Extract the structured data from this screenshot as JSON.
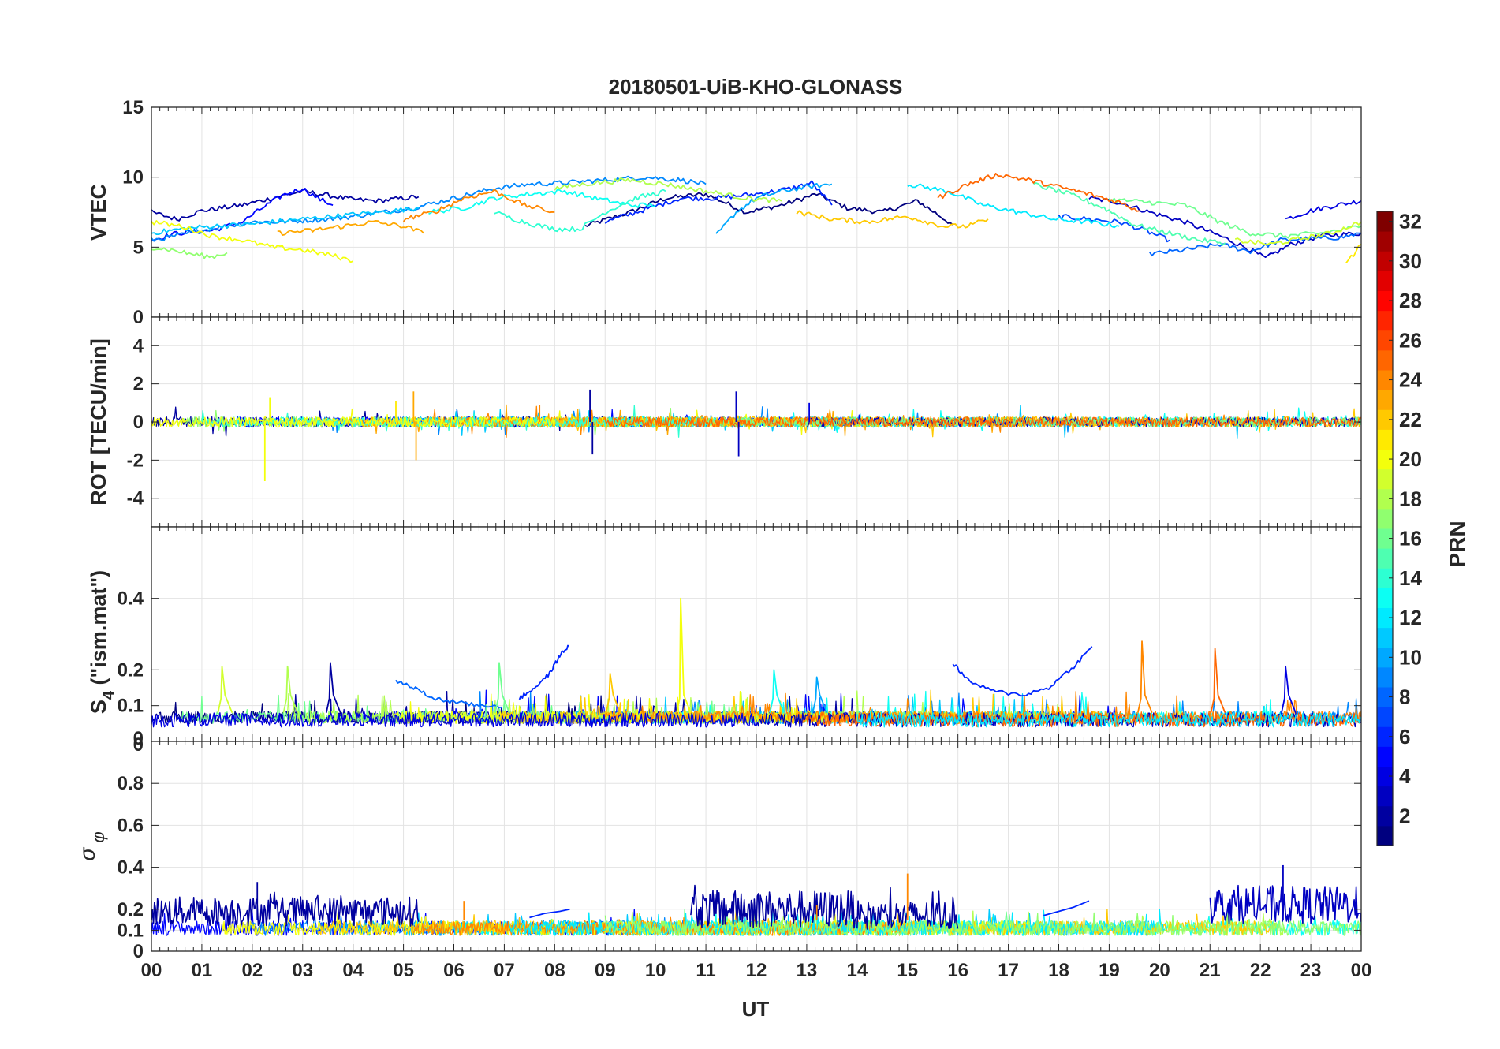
{
  "chart_data": {
    "type": "line",
    "title": "20180501-UiB-KHO-GLONASS",
    "xlabel": "UT",
    "x_ticks": [
      "00",
      "01",
      "02",
      "03",
      "04",
      "05",
      "06",
      "07",
      "08",
      "09",
      "10",
      "11",
      "12",
      "13",
      "14",
      "15",
      "16",
      "17",
      "18",
      "19",
      "20",
      "21",
      "22",
      "23",
      "00"
    ],
    "xlim": [
      0,
      24
    ],
    "colorbar": {
      "label": "PRN",
      "range": [
        1,
        32
      ],
      "ticks": [
        "2",
        "4",
        "6",
        "8",
        "10",
        "12",
        "14",
        "16",
        "18",
        "20",
        "22",
        "24",
        "26",
        "28",
        "30",
        "32"
      ],
      "colormap": [
        "#00007f",
        "#0000ff",
        "#007fff",
        "#00ffff",
        "#7fff7f",
        "#ffff00",
        "#ff7f00",
        "#ff0000",
        "#7f0000"
      ]
    },
    "panels": [
      {
        "id": "vtec",
        "ylabel": "VTEC",
        "ylim": [
          0,
          15
        ],
        "yticks": [
          "0",
          "5",
          "10",
          "15"
        ],
        "series": [
          {
            "prn": 1,
            "x": [
              8.6,
              9.5,
              10.2,
              11,
              11.8,
              12.5,
              13.2,
              13.8,
              14.5,
              15.2,
              15.9
            ],
            "y": [
              6.5,
              7.5,
              8.5,
              8.8,
              7.5,
              8.0,
              8.8,
              7.8,
              7.5,
              8.3,
              6.6
            ]
          },
          {
            "prn": 2,
            "x": [
              0,
              0.5,
              1.0,
              1.8,
              2.5,
              3.0,
              3.5,
              4.0,
              4.5,
              5.0,
              5.3
            ],
            "y": [
              7.5,
              7.0,
              7.6,
              8.0,
              8.6,
              9.0,
              8.7,
              8.4,
              8.3,
              8.5,
              8.6
            ]
          },
          {
            "prn": 3,
            "x": [
              18.6,
              19.2,
              19.8,
              20.5,
              21.2,
              21.7,
              22.1,
              22.6,
              23.2,
              24
            ],
            "y": [
              8.5,
              8.2,
              7.5,
              6.8,
              5.8,
              5.0,
              4.2,
              5.2,
              5.8,
              6.0
            ]
          },
          {
            "prn": 4,
            "x": [
              22.5,
              23.0,
              23.5,
              24
            ],
            "y": [
              7.0,
              7.6,
              8.0,
              8.3
            ]
          },
          {
            "prn": 5,
            "x": [
              0,
              0.5,
              1.2,
              1.8,
              2.2,
              2.6,
              3.0,
              3.3,
              3.6
            ],
            "y": [
              5.5,
              6.0,
              6.2,
              6.8,
              7.8,
              8.7,
              9.2,
              8.5,
              8.0
            ]
          },
          {
            "prn": 6,
            "x": [
              9.0,
              9.8,
              10.5,
              11.2,
              12.0,
              12.7,
              13.1,
              13.5
            ],
            "y": [
              6.8,
              7.7,
              8.5,
              8.5,
              8.8,
              9.2,
              9.6,
              8.0
            ]
          },
          {
            "prn": 7,
            "x": [
              18.0,
              18.6,
              19.2,
              19.7,
              20.2
            ],
            "y": [
              7.2,
              7.0,
              6.8,
              6.2,
              5.5
            ]
          },
          {
            "prn": 8,
            "x": [
              19.8,
              20.5,
              21.2,
              21.8,
              22.4,
              23.0,
              23.6,
              24
            ],
            "y": [
              4.5,
              4.8,
              5.2,
              4.7,
              5.5,
              5.6,
              5.7,
              6.0
            ]
          },
          {
            "prn": 9,
            "x": [
              0,
              0.5,
              1.0,
              1.5,
              2.0,
              2.5,
              3.0,
              3.5,
              4.0,
              4.6,
              5.2,
              6.0,
              6.8,
              7.5,
              8.2,
              9.0,
              9.8,
              10.5,
              11.0
            ],
            "y": [
              5.5,
              5.8,
              6.2,
              6.5,
              6.8,
              6.8,
              6.9,
              7.0,
              7.2,
              7.5,
              7.8,
              8.5,
              9.2,
              9.5,
              9.6,
              9.8,
              10.0,
              9.8,
              9.5
            ]
          },
          {
            "prn": 10,
            "x": [
              11.2,
              11.6,
              12.0,
              12.5,
              13.0,
              13.5
            ],
            "y": [
              5.8,
              7.5,
              8.5,
              9.0,
              9.3,
              9.5
            ]
          },
          {
            "prn": 11,
            "x": [
              0,
              0.6,
              1.2,
              1.8,
              2.4,
              3.0,
              3.6,
              4.2,
              4.8,
              5.3
            ],
            "y": [
              6.0,
              6.3,
              6.5,
              6.6,
              6.8,
              7.0,
              7.2,
              7.4,
              7.6,
              7.8
            ]
          },
          {
            "prn": 12,
            "x": [
              15.0,
              15.8,
              16.5,
              17.2,
              17.9,
              18.6,
              19.2
            ],
            "y": [
              9.5,
              9.0,
              8.0,
              7.5,
              7.0,
              6.8,
              6.5
            ]
          },
          {
            "prn": 13,
            "x": [
              5.5,
              6.2,
              6.8,
              7.5,
              8.2,
              8.8,
              9.5,
              10.0
            ],
            "y": [
              7.5,
              7.8,
              8.5,
              8.8,
              9.0,
              8.5,
              8.0,
              8.0
            ]
          },
          {
            "prn": 14,
            "x": [
              6.8,
              7.2,
              7.6,
              8.0,
              8.5,
              9.0,
              9.6,
              10.2
            ],
            "y": [
              7.5,
              7.0,
              6.6,
              6.3,
              6.3,
              7.5,
              8.5,
              9.0
            ]
          },
          {
            "prn": 15,
            "x": [
              17.5,
              18.2,
              18.9,
              19.5,
              20.2,
              20.8,
              21.3
            ],
            "y": [
              9.5,
              8.8,
              7.8,
              6.6,
              6.0,
              5.5,
              5.3
            ]
          },
          {
            "prn": 16,
            "x": [
              19.0,
              19.8,
              20.5,
              21.2,
              21.8,
              22.5,
              23.2,
              24
            ],
            "y": [
              8.4,
              8.2,
              8.0,
              6.8,
              6.0,
              5.8,
              6.0,
              6.5
            ]
          },
          {
            "prn": 17,
            "x": [
              0,
              0.4,
              0.8,
              1.2,
              1.5
            ],
            "y": [
              5.0,
              4.8,
              4.5,
              4.3,
              4.6
            ]
          },
          {
            "prn": 18,
            "x": [
              8.0,
              8.8,
              9.5,
              10.2,
              11.0,
              11.8,
              12.5
            ],
            "y": [
              9.2,
              9.6,
              9.8,
              9.5,
              9.0,
              8.5,
              8.3
            ]
          },
          {
            "prn": 19,
            "x": [
              21.5,
              22.2,
              22.8,
              23.4,
              24
            ],
            "y": [
              5.5,
              5.2,
              5.6,
              6.0,
              6.8
            ]
          },
          {
            "prn": 20,
            "x": [
              0,
              0.6,
              1.2,
              1.8,
              2.4,
              3.0,
              3.6,
              4.0
            ],
            "y": [
              6.8,
              6.5,
              5.8,
              5.5,
              5.0,
              4.8,
              4.4,
              4.0
            ]
          },
          {
            "prn": 21,
            "x": [
              23.7,
              23.85,
              24
            ],
            "y": [
              4.0,
              4.5,
              5.2
            ]
          },
          {
            "prn": 22,
            "x": [
              12.8,
              13.5,
              14.2,
              15.0,
              15.7,
              16.2,
              16.6
            ],
            "y": [
              7.5,
              7.0,
              6.8,
              7.2,
              6.5,
              6.5,
              7.0
            ]
          },
          {
            "prn": 23,
            "x": [
              2.5,
              3.2,
              3.8,
              4.4,
              5.0,
              5.4
            ],
            "y": [
              6.0,
              6.2,
              6.5,
              6.8,
              6.5,
              6.0
            ]
          },
          {
            "prn": 24,
            "x": [
              5.0,
              5.6,
              6.2,
              6.8,
              7.4,
              8.0
            ],
            "y": [
              7.0,
              7.5,
              8.5,
              9.0,
              8.0,
              7.5
            ]
          },
          {
            "prn": 25,
            "x": [
              15.6,
              16.2,
              16.8,
              17.4,
              18.0,
              18.6,
              19.2,
              19.6
            ],
            "y": [
              8.5,
              9.5,
              10.2,
              9.8,
              9.3,
              8.8,
              8.2,
              7.6
            ]
          }
        ]
      },
      {
        "id": "rot",
        "ylabel": "ROT [TECU/min]",
        "ylim": [
          -5.5,
          5.5
        ],
        "yticks": [
          "-4",
          "-2",
          "0",
          "2",
          "4"
        ],
        "spikes": [
          {
            "prn": 20,
            "x": 2.25,
            "y": -3.1
          },
          {
            "prn": 20,
            "x": 2.35,
            "y": 1.3
          },
          {
            "prn": 23,
            "x": 5.2,
            "y": 1.6
          },
          {
            "prn": 23,
            "x": 5.25,
            "y": -2.0
          },
          {
            "prn": 21,
            "x": 4.85,
            "y": 1.1
          },
          {
            "prn": 2,
            "x": 8.7,
            "y": 1.7
          },
          {
            "prn": 2,
            "x": 8.75,
            "y": -1.7
          },
          {
            "prn": 3,
            "x": 11.6,
            "y": 1.6
          },
          {
            "prn": 3,
            "x": 11.65,
            "y": -1.8
          },
          {
            "prn": 4,
            "x": 13.05,
            "y": 1.0
          },
          {
            "prn": 24,
            "x": 7.7,
            "y": 0.9
          }
        ]
      },
      {
        "id": "s4",
        "ylabel": "S4 (\"ism.mat\")",
        "ylabel_main": "S",
        "ylabel_sub": "4",
        "ylabel_rest": " (\"ism.mat\")",
        "ylim": [
          0,
          0.6
        ],
        "yticks": [
          "0",
          "0",
          "0.1",
          "0.2",
          "0.4"
        ],
        "baseline": 0.05,
        "arcs": [
          {
            "prn": 6,
            "x": [
              7.3,
              7.6,
              7.9,
              8.1,
              8.3
            ],
            "y": [
              0.12,
              0.15,
              0.19,
              0.24,
              0.27
            ]
          },
          {
            "prn": 6,
            "x": [
              15.9,
              16.2,
              16.7,
              17.3,
              17.8,
              18.3,
              18.7
            ],
            "y": [
              0.22,
              0.17,
              0.14,
              0.13,
              0.15,
              0.21,
              0.27
            ]
          },
          {
            "prn": 8,
            "x": [
              4.85,
              5.2,
              5.6,
              6.0,
              6.5,
              7.0
            ],
            "y": [
              0.17,
              0.15,
              0.12,
              0.11,
              0.1,
              0.1
            ]
          }
        ],
        "spikes": [
          {
            "prn": 20,
            "x": 10.5,
            "y": 0.4
          },
          {
            "prn": 24,
            "x": 19.65,
            "y": 0.28
          },
          {
            "prn": 25,
            "x": 21.1,
            "y": 0.26
          },
          {
            "prn": 2,
            "x": 3.55,
            "y": 0.22
          },
          {
            "prn": 4,
            "x": 22.5,
            "y": 0.21
          },
          {
            "prn": 13,
            "x": 12.35,
            "y": 0.2
          },
          {
            "prn": 10,
            "x": 13.2,
            "y": 0.18
          },
          {
            "prn": 16,
            "x": 6.9,
            "y": 0.22
          },
          {
            "prn": 18,
            "x": 2.7,
            "y": 0.21
          },
          {
            "prn": 22,
            "x": 9.1,
            "y": 0.19
          },
          {
            "prn": 19,
            "x": 1.4,
            "y": 0.21
          }
        ]
      },
      {
        "id": "sigma",
        "ylabel": "σφ",
        "ylabel_main": "σ",
        "ylabel_sub": "φ",
        "ylim": [
          0,
          1
        ],
        "yticks": [
          "0",
          "0.1",
          "0.2",
          "0.4",
          "0.6",
          "0.8"
        ],
        "bands": [
          {
            "prn": 2,
            "x0": 0,
            "x1": 5.3,
            "mean": 0.19,
            "amp": 0.07
          },
          {
            "prn": 2,
            "x0": 10.7,
            "x1": 14.0,
            "mean": 0.2,
            "amp": 0.09
          },
          {
            "prn": 2,
            "x0": 14.0,
            "x1": 16.0,
            "mean": 0.17,
            "amp": 0.07
          },
          {
            "prn": 3,
            "x0": 21.0,
            "x1": 24.0,
            "mean": 0.22,
            "amp": 0.09
          }
        ],
        "arcs": [
          {
            "prn": 6,
            "x": [
              7.5,
              7.8,
              8.1,
              8.3
            ],
            "y": [
              0.16,
              0.18,
              0.19,
              0.2
            ]
          },
          {
            "prn": 6,
            "x": [
              17.7,
              18.0,
              18.3,
              18.6
            ],
            "y": [
              0.17,
              0.19,
              0.21,
              0.24
            ]
          }
        ],
        "spikes": [
          {
            "prn": 3,
            "x": 22.45,
            "y": 0.41
          },
          {
            "prn": 24,
            "x": 15.0,
            "y": 0.37
          },
          {
            "prn": 2,
            "x": 2.1,
            "y": 0.33
          },
          {
            "prn": 24,
            "x": 6.2,
            "y": 0.24
          },
          {
            "prn": 24,
            "x": 13.2,
            "y": 0.22
          }
        ]
      }
    ]
  }
}
